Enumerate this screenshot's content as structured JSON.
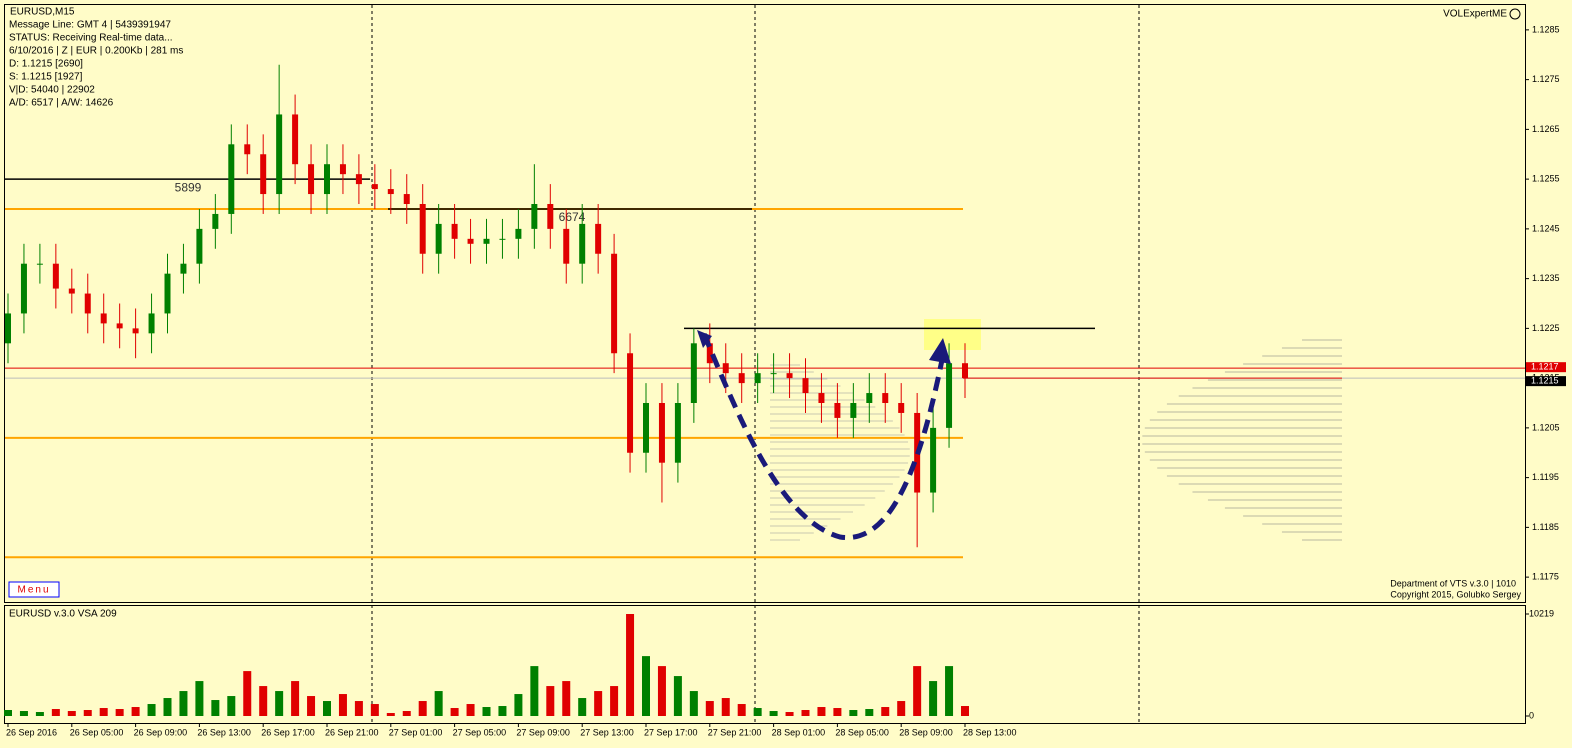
{
  "chart_data": {
    "type": "candlestick",
    "title": "EURUSD,M15",
    "info_lines": [
      "Message Line: GMT 4 | 5439391947",
      "STATUS:  Receiving Real-time data...",
      "6/10/2016 | Z | EUR | 0.200Kb | 281 ms",
      "D: 1.1215  [2690]",
      "S: 1.1215  [1927]",
      "V|D: 54040 | 22902",
      "A/D: 6517 | A/W: 14626"
    ],
    "indicator_name": "VOLExpertME",
    "menu_label": "Menu",
    "footer_lines": [
      "Department of VTS  v.3.0 | 1010",
      "Copyright 2015, Golubko Sergey"
    ],
    "categories": [
      "26 Sep 2016",
      null,
      null,
      null,
      "26 Sep 05:00",
      null,
      null,
      null,
      "26 Sep 09:00",
      null,
      null,
      null,
      "26 Sep 13:00",
      null,
      null,
      null,
      "26 Sep 17:00",
      null,
      null,
      null,
      "26 Sep 21:00",
      null,
      null,
      null,
      "27 Sep 01:00",
      null,
      null,
      null,
      "27 Sep 05:00",
      null,
      null,
      null,
      "27 Sep 09:00",
      null,
      null,
      null,
      "27 Sep 13:00",
      null,
      null,
      null,
      "27 Sep 17:00",
      null,
      null,
      null,
      "27 Sep 21:00",
      null,
      null,
      null,
      "28 Sep 01:00",
      null,
      null,
      null,
      "28 Sep 05:00",
      null,
      null,
      null,
      "28 Sep 09:00",
      null,
      null,
      null,
      "28 Sep 13:00"
    ],
    "open": [
      1.1222,
      1.1228,
      1.1238,
      1.1238,
      1.1233,
      1.1232,
      1.1228,
      1.1226,
      1.1225,
      1.1224,
      1.1228,
      1.1236,
      1.1238,
      1.1245,
      1.1248,
      1.1262,
      1.126,
      1.1252,
      1.1268,
      1.1258,
      1.1252,
      1.1258,
      1.1256,
      1.1254,
      1.1253,
      1.1252,
      1.125,
      1.124,
      1.1246,
      1.1243,
      1.1242,
      1.1243,
      1.1243,
      1.1245,
      1.125,
      1.1245,
      1.1238,
      1.1246,
      1.124,
      1.122,
      1.12,
      1.121,
      1.1198,
      1.121,
      1.1222,
      1.1218,
      1.1216,
      1.1214,
      1.1216,
      1.1216,
      1.1215,
      1.1212,
      1.121,
      1.1207,
      1.121,
      1.1212,
      1.121,
      1.1208,
      1.1192,
      1.1205,
      1.1218
    ],
    "high": [
      1.1232,
      1.1242,
      1.1242,
      1.1242,
      1.1237,
      1.1236,
      1.1232,
      1.123,
      1.1229,
      1.1232,
      1.124,
      1.1242,
      1.1249,
      1.1252,
      1.1266,
      1.1266,
      1.1264,
      1.1278,
      1.1272,
      1.1262,
      1.1262,
      1.1262,
      1.126,
      1.1258,
      1.1257,
      1.1256,
      1.1254,
      1.125,
      1.125,
      1.1247,
      1.1247,
      1.1247,
      1.1249,
      1.1258,
      1.1254,
      1.1249,
      1.125,
      1.125,
      1.1244,
      1.1224,
      1.1214,
      1.1214,
      1.1214,
      1.1225,
      1.1226,
      1.1222,
      1.122,
      1.122,
      1.122,
      1.122,
      1.1219,
      1.1216,
      1.1214,
      1.1214,
      1.1216,
      1.1216,
      1.1214,
      1.1212,
      1.1209,
      1.1222,
      1.1222
    ],
    "low": [
      1.1218,
      1.1224,
      1.1234,
      1.1229,
      1.1228,
      1.1224,
      1.1222,
      1.1221,
      1.1219,
      1.122,
      1.1224,
      1.1232,
      1.1234,
      1.1241,
      1.1244,
      1.1256,
      1.1248,
      1.1248,
      1.1254,
      1.1248,
      1.1248,
      1.1252,
      1.125,
      1.1249,
      1.1248,
      1.1246,
      1.1236,
      1.1236,
      1.1239,
      1.1238,
      1.1238,
      1.1239,
      1.1239,
      1.1241,
      1.1241,
      1.1234,
      1.1234,
      1.1236,
      1.1216,
      1.1196,
      1.1196,
      1.119,
      1.1194,
      1.1206,
      1.1214,
      1.1212,
      1.121,
      1.121,
      1.1212,
      1.1211,
      1.1208,
      1.1206,
      1.1203,
      1.1203,
      1.1206,
      1.1206,
      1.1204,
      1.1181,
      1.1188,
      1.1201,
      1.1211
    ],
    "close": [
      1.1228,
      1.1238,
      1.1238,
      1.1233,
      1.1232,
      1.1228,
      1.1226,
      1.1225,
      1.1224,
      1.1228,
      1.1236,
      1.1238,
      1.1245,
      1.1248,
      1.1262,
      1.126,
      1.1252,
      1.1268,
      1.1258,
      1.1252,
      1.1258,
      1.1256,
      1.1254,
      1.1253,
      1.1252,
      1.125,
      1.124,
      1.1246,
      1.1243,
      1.1242,
      1.1243,
      1.1243,
      1.1245,
      1.125,
      1.1245,
      1.1238,
      1.1246,
      1.124,
      1.122,
      1.12,
      1.121,
      1.1198,
      1.121,
      1.1222,
      1.1218,
      1.1216,
      1.1214,
      1.1216,
      1.1216,
      1.1215,
      1.1212,
      1.121,
      1.1207,
      1.121,
      1.1212,
      1.121,
      1.1208,
      1.1192,
      1.1205,
      1.1218,
      1.1215
    ],
    "up_color": "#008000",
    "down_color": "#e00000",
    "ylim": [
      1.117,
      1.129
    ],
    "yticks": [
      1.1285,
      1.1275,
      1.1265,
      1.1255,
      1.1245,
      1.1235,
      1.1225,
      1.1215,
      1.1205,
      1.1195,
      1.1185,
      1.1175
    ],
    "levels": [
      {
        "value": 1.1249,
        "color": "#ffa500"
      },
      {
        "value": 1.1203,
        "color": "#ffa500"
      },
      {
        "value": 1.1179,
        "color": "#ffa500"
      },
      {
        "value": 1.1255,
        "color": "#000000",
        "label": 5899
      },
      {
        "value": 1.1249,
        "color": "#000000",
        "label": 6674
      },
      {
        "value": 1.1225,
        "color": "#000000"
      }
    ],
    "price_tags": [
      {
        "value": 1.1217,
        "color": "#e00000"
      },
      {
        "value": 1.1215,
        "color": "#000000"
      }
    ],
    "volume": {
      "title": "EURUSD  v.3.0  VSA 209",
      "values": [
        600,
        500,
        400,
        700,
        500,
        600,
        800,
        700,
        900,
        1200,
        1800,
        2500,
        3500,
        1600,
        2000,
        4500,
        3000,
        2500,
        3500,
        2000,
        1500,
        2200,
        1500,
        1200,
        300,
        500,
        1500,
        2500,
        800,
        1200,
        900,
        1000,
        2200,
        5000,
        3000,
        3500,
        1800,
        2500,
        3000,
        10219,
        6000,
        5000,
        4000,
        2500,
        1500,
        1800,
        1200,
        800,
        500,
        400,
        600,
        900,
        800,
        600,
        700,
        900,
        1500,
        5000,
        3500,
        5000,
        1000
      ],
      "ylim": [
        0,
        10219
      ],
      "yticks": [
        0,
        10219
      ]
    }
  }
}
